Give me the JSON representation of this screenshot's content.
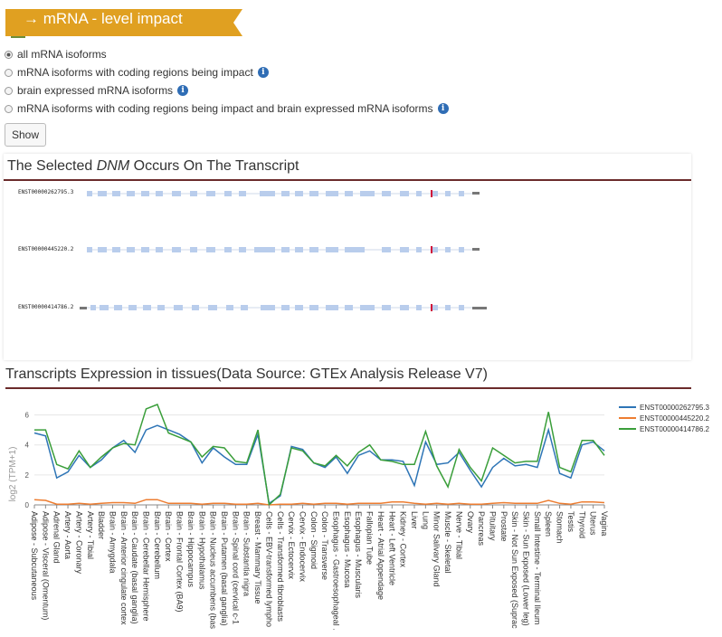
{
  "banner": {
    "title": "→ mRNA - level impact",
    "color": "#e0a021"
  },
  "filters": [
    {
      "label": "all mRNA isoforms",
      "checked": true,
      "info": false
    },
    {
      "label": "mRNA isoforms with coding regions being impact",
      "checked": false,
      "info": true
    },
    {
      "label": "brain expressed mRNA isoforms",
      "checked": false,
      "info": true
    },
    {
      "label": "mRNA isoforms with coding regions being impact and brain expressed mRNA isoforms",
      "checked": false,
      "info": true
    }
  ],
  "show_button": "Show",
  "transcript_section": {
    "title_pre": "The Selected ",
    "title_em": "DNM",
    "title_post": " Occurs On The Transcript",
    "transcripts": [
      "ENST00000262795.3",
      "ENST00000445220.2",
      "ENST00000414786.2"
    ]
  },
  "expression_section": {
    "title": "Transcripts Expression in tissues(Data Source: GTEx Analysis Release V7)"
  },
  "chart_data": {
    "type": "line",
    "ylabel": "log2 (TPM+1)",
    "ylim": [
      0,
      7
    ],
    "yticks": [
      0,
      2,
      4,
      6
    ],
    "categories": [
      "Adipose - Subcutaneous",
      "Adipose - Visceral (Omentum)",
      "Adrenal Gland",
      "Artery - Aorta",
      "Artery - Coronary",
      "Artery - Tibial",
      "Bladder",
      "Brain - Amygdala",
      "Brain - Anterior cingulate cortex",
      "Brain - Caudate (basal ganglia)",
      "Brain - Cerebellar Hemisphere",
      "Brain - Cerebellum",
      "Brain - Cortex",
      "Brain - Frontal Cortex (BA9)",
      "Brain - Hippocampus",
      "Brain - Hypothalamus",
      "Brain - Nucleus accumbens (bas",
      "Brain - Putamen (basal ganglia)",
      "Brain - Spinal cord (cervical c-1",
      "Brain - Substantia nigra",
      "Breast - Mammary Tissue",
      "Cells - EBV-transformed lympho",
      "Cells - Transformed fibroblasts",
      "Cervix - Ectocervix",
      "Cervix - Endocervix",
      "Colon - Sigmoid",
      "Colon - Transverse",
      "Esophagus - Gastroesophageal .",
      "Esophagus - Mucosa",
      "Esophagus - Muscularis",
      "Fallopian Tube",
      "Heart - Atrial Appendage",
      "Heart - Left Ventricle",
      "Kidney - Cortex",
      "Liver",
      "Lung",
      "Minor Salivary Gland",
      "Muscle - Skeletal",
      "Nerve - Tibial",
      "Ovary",
      "Pancreas",
      "Pituitary",
      "Prostate",
      "Skin - Not Sun Exposed (Suprac",
      "Skin - Sun Exposed (Lower leg)",
      "Small Intestine - Terminal Ileum",
      "Spleen",
      "Stomach",
      "Testis",
      "Thyroid",
      "Uterus",
      "Vagina"
    ],
    "series": [
      {
        "name": "ENST00000262795.3",
        "color": "#2e75b6",
        "values": [
          4.8,
          4.6,
          1.8,
          2.2,
          3.3,
          2.5,
          3.0,
          3.8,
          4.3,
          3.5,
          5.0,
          5.3,
          5.0,
          4.7,
          4.2,
          2.8,
          3.8,
          3.2,
          2.7,
          2.7,
          4.7,
          0.1,
          0.6,
          3.9,
          3.7,
          2.8,
          2.5,
          3.2,
          2.1,
          3.3,
          3.6,
          3.0,
          3.0,
          2.9,
          1.3,
          4.2,
          2.7,
          2.8,
          3.5,
          2.3,
          1.2,
          2.5,
          3.1,
          2.6,
          2.7,
          2.5,
          5.0,
          2.1,
          1.8,
          4.0,
          4.2,
          3.6
        ]
      },
      {
        "name": "ENST00000445220.2",
        "color": "#ed7d31",
        "values": [
          0.35,
          0.3,
          0.05,
          0.05,
          0.1,
          0.05,
          0.1,
          0.15,
          0.15,
          0.1,
          0.35,
          0.35,
          0.1,
          0.1,
          0.1,
          0.05,
          0.1,
          0.1,
          0.05,
          0.05,
          0.1,
          0.0,
          0.05,
          0.05,
          0.1,
          0.05,
          0.1,
          0.1,
          0.05,
          0.1,
          0.1,
          0.1,
          0.2,
          0.2,
          0.1,
          0.05,
          0.1,
          0.05,
          0.1,
          0.05,
          0.05,
          0.1,
          0.15,
          0.1,
          0.1,
          0.1,
          0.3,
          0.1,
          0.05,
          0.2,
          0.2,
          0.15
        ]
      },
      {
        "name": "ENST00000414786.2",
        "color": "#3a9e3a",
        "values": [
          5.0,
          5.0,
          2.7,
          2.4,
          3.6,
          2.5,
          3.2,
          3.8,
          4.1,
          4.0,
          6.4,
          6.7,
          4.8,
          4.5,
          4.2,
          3.2,
          3.9,
          3.8,
          2.9,
          2.8,
          5.0,
          0.0,
          0.7,
          3.8,
          3.6,
          2.8,
          2.6,
          3.3,
          2.6,
          3.5,
          4.0,
          3.0,
          2.9,
          2.7,
          2.7,
          4.9,
          2.6,
          1.2,
          3.7,
          2.5,
          1.6,
          3.8,
          3.3,
          2.8,
          2.9,
          2.9,
          6.2,
          2.5,
          2.2,
          4.3,
          4.3,
          3.3
        ]
      }
    ]
  }
}
